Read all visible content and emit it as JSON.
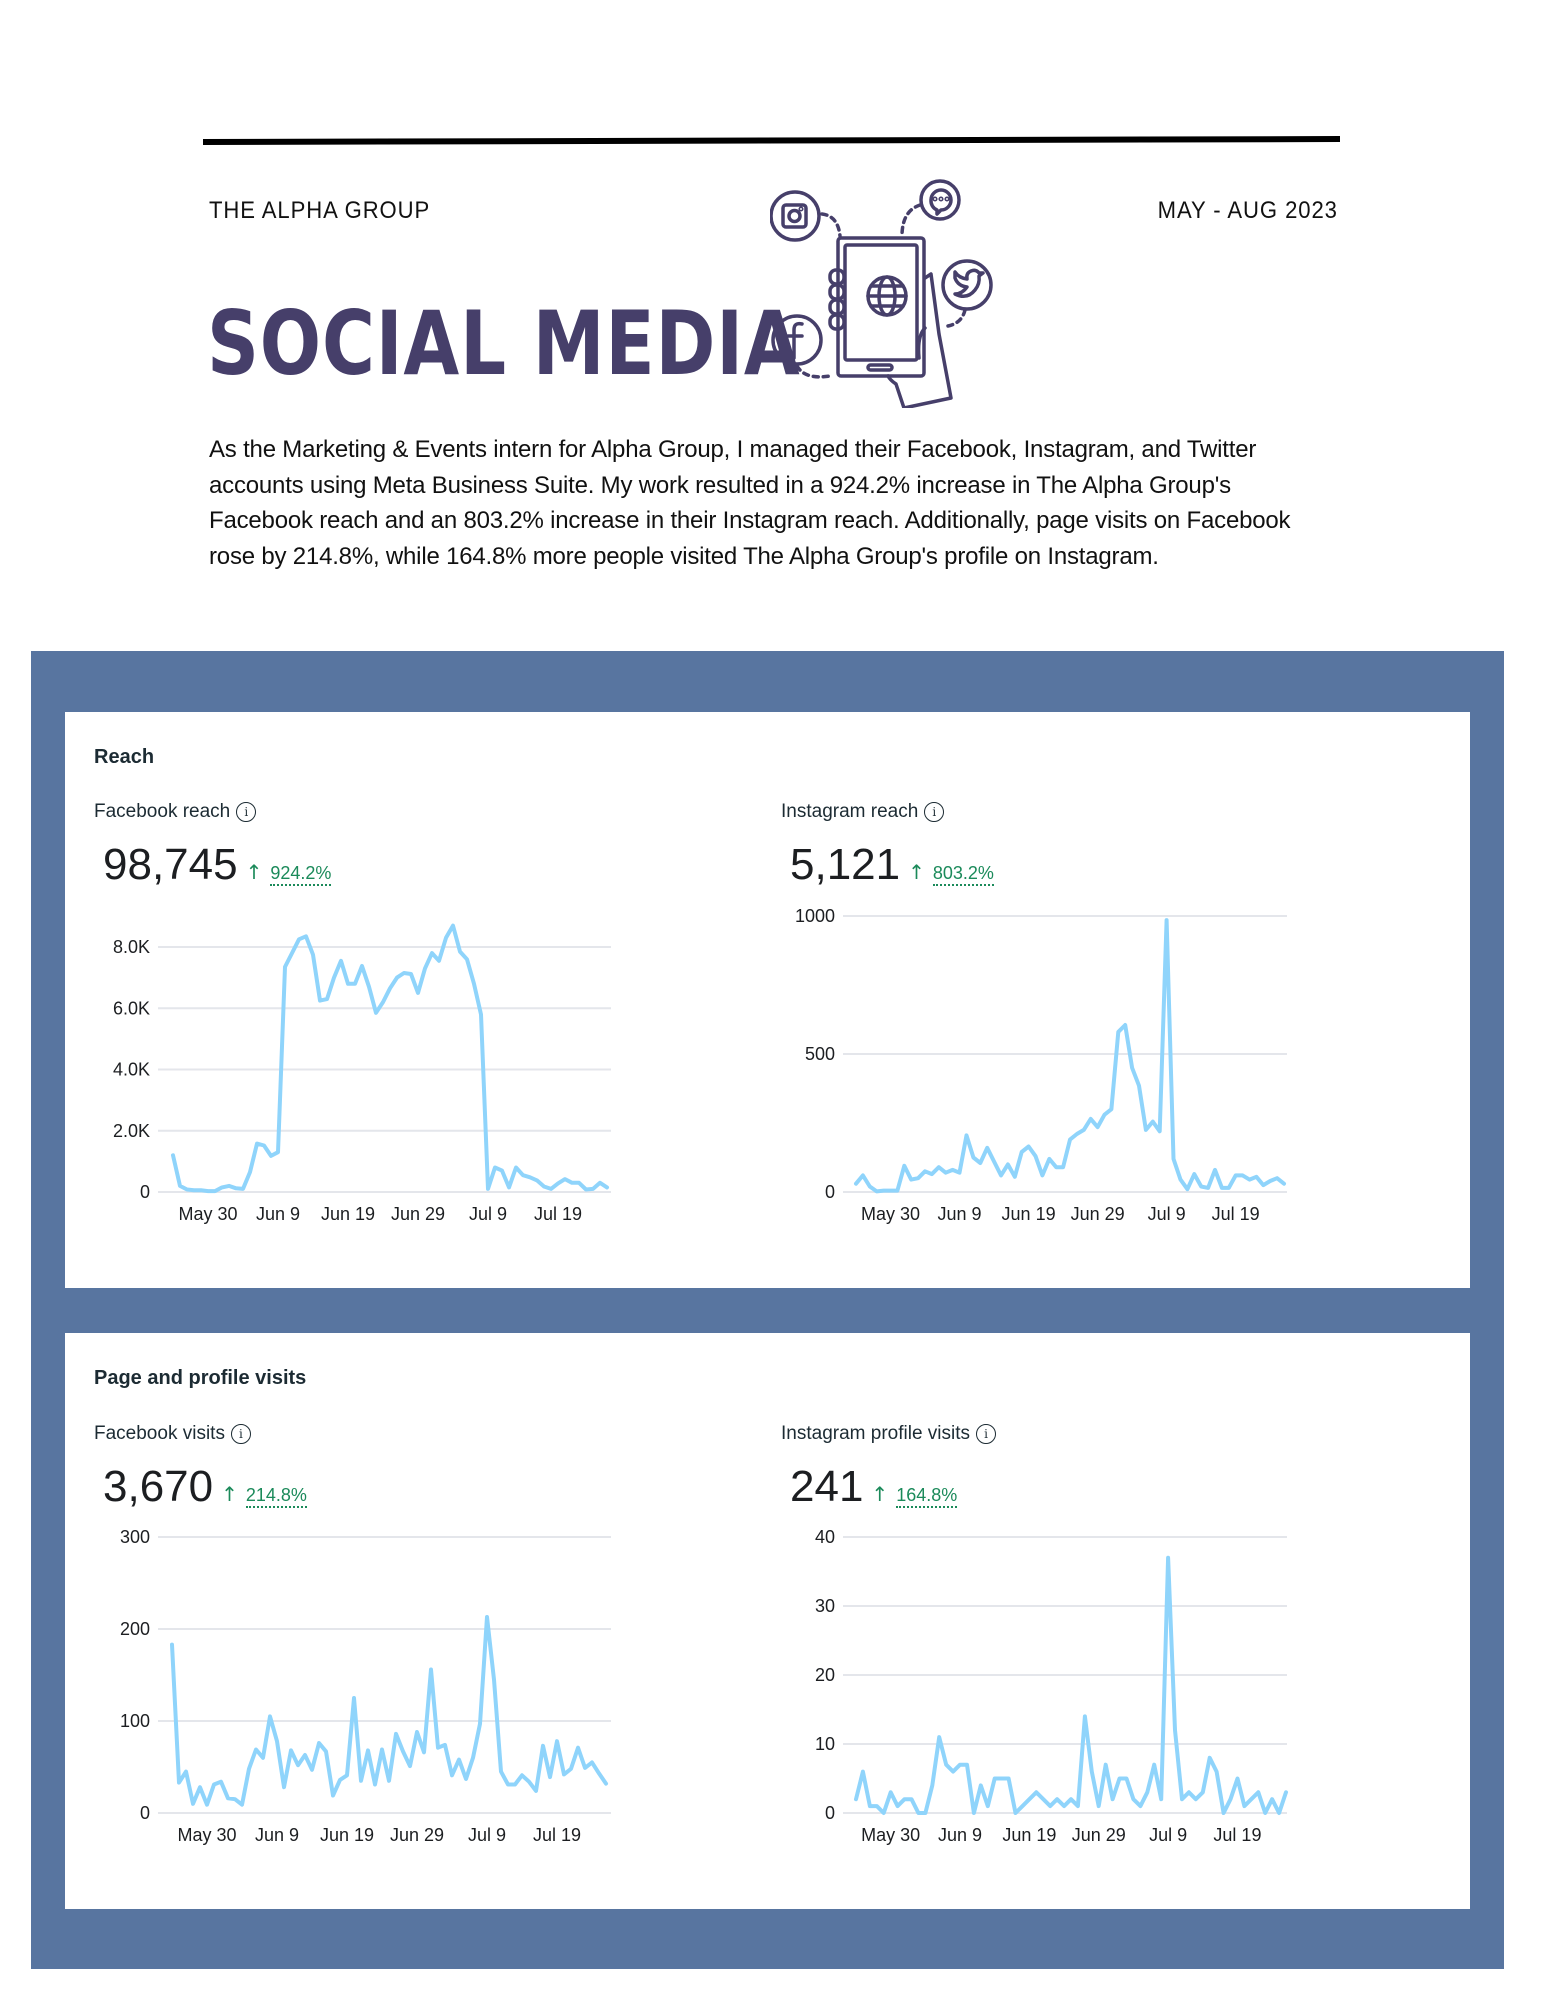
{
  "header": {
    "org_name": "THE ALPHA GROUP",
    "date_range": "MAY - AUG 2023",
    "title": "SOCIAL MEDIA",
    "illustration_icons": [
      "instagram-icon",
      "chat-bubble-icon",
      "twitter-icon",
      "facebook-icon",
      "smartphone-icon",
      "globe-icon",
      "hand-icon"
    ],
    "intro": "As the Marketing & Events intern for Alpha Group, I managed their Facebook, Instagram, and Twitter accounts using Meta Business Suite. My work resulted in a 924.2% increase in The Alpha Group's Facebook reach and an 803.2% increase in their Instagram reach. Additionally, page visits on Facebook rose by 214.8%, while 164.8% more people visited The Alpha Group's profile on Instagram."
  },
  "colors": {
    "title": "#463f6a",
    "panel_background": "#5875a0",
    "line": "#8fd4fb",
    "positive_change": "#1b8a5a"
  },
  "cards": {
    "reach": {
      "title": "Reach",
      "facebook": {
        "label": "Facebook reach",
        "value": "98,745",
        "arrow": "↑",
        "change": "924.2%"
      },
      "instagram": {
        "label": "Instagram reach",
        "value": "5,121",
        "arrow": "↑",
        "change": "803.2%"
      }
    },
    "visits": {
      "title": "Page and profile visits",
      "facebook": {
        "label": "Facebook visits",
        "value": "3,670",
        "arrow": "↑",
        "change": "214.8%"
      },
      "instagram": {
        "label": "Instagram profile visits",
        "value": "241",
        "arrow": "↑",
        "change": "164.8%"
      }
    }
  },
  "chart_data": [
    {
      "id": "facebook-reach",
      "type": "line",
      "title": "Facebook reach",
      "x_start": "May 25",
      "x_end": "Jul 26",
      "x_tick_labels": [
        "May 30",
        "Jun 9",
        "Jun 19",
        "Jun 29",
        "Jul 9",
        "Jul 19"
      ],
      "x_tick_index": [
        5,
        15,
        25,
        35,
        45,
        55
      ],
      "y_ticks": [
        0,
        2000,
        4000,
        6000,
        8000
      ],
      "y_tick_labels": [
        "0",
        "2.0K",
        "4.0K",
        "6.0K",
        "8.0K"
      ],
      "ylim": [
        0,
        9300
      ],
      "grid": true,
      "values": [
        1200,
        200,
        80,
        60,
        60,
        30,
        30,
        150,
        200,
        120,
        100,
        650,
        1580,
        1520,
        1180,
        1300,
        7350,
        7800,
        8250,
        8350,
        7750,
        6250,
        6300,
        7000,
        7550,
        6800,
        6800,
        7380,
        6700,
        5850,
        6200,
        6650,
        7000,
        7150,
        7120,
        6500,
        7300,
        7800,
        7550,
        8300,
        8700,
        7850,
        7600,
        6800,
        5800,
        100,
        800,
        700,
        150,
        800,
        550,
        480,
        380,
        180,
        100,
        280,
        420,
        300,
        300,
        80,
        100,
        300,
        150
      ]
    },
    {
      "id": "instagram-reach",
      "type": "line",
      "title": "Instagram reach",
      "x_start": "May 25",
      "x_end": "Jul 26",
      "x_tick_labels": [
        "May 30",
        "Jun 9",
        "Jun 19",
        "Jun 29",
        "Jul 9",
        "Jul 19"
      ],
      "x_tick_index": [
        5,
        15,
        25,
        35,
        45,
        55
      ],
      "y_ticks": [
        0,
        500,
        1000
      ],
      "y_tick_labels": [
        "0",
        "500",
        "1000"
      ],
      "ylim": [
        0,
        1000
      ],
      "grid": true,
      "values": [
        30,
        60,
        20,
        2,
        5,
        5,
        5,
        95,
        45,
        50,
        75,
        65,
        90,
        70,
        80,
        70,
        205,
        125,
        105,
        160,
        110,
        60,
        100,
        55,
        145,
        165,
        130,
        60,
        120,
        90,
        90,
        190,
        210,
        225,
        265,
        235,
        280,
        300,
        580,
        605,
        450,
        385,
        225,
        255,
        220,
        985,
        120,
        45,
        10,
        65,
        20,
        15,
        80,
        15,
        15,
        60,
        60,
        45,
        55,
        25,
        40,
        50,
        30
      ]
    },
    {
      "id": "facebook-visits",
      "type": "line",
      "title": "Facebook visits",
      "x_start": "May 25",
      "x_end": "Jul 26",
      "x_tick_labels": [
        "May 30",
        "Jun 9",
        "Jun 19",
        "Jun 29",
        "Jul 9",
        "Jul 19"
      ],
      "x_tick_index": [
        5,
        15,
        25,
        35,
        45,
        55
      ],
      "y_ticks": [
        0,
        100,
        200,
        300
      ],
      "y_tick_labels": [
        "0",
        "100",
        "200",
        "300"
      ],
      "ylim": [
        0,
        300
      ],
      "grid": true,
      "values": [
        183,
        33,
        45,
        10,
        28,
        9,
        31,
        34,
        16,
        15,
        9,
        48,
        69,
        60,
        105,
        78,
        28,
        68,
        52,
        63,
        47,
        76,
        67,
        19,
        36,
        41,
        125,
        35,
        68,
        31,
        69,
        35,
        86,
        67,
        51,
        88,
        66,
        156,
        71,
        74,
        41,
        58,
        37,
        60,
        97,
        213,
        145,
        45,
        31,
        31,
        41,
        34,
        24,
        73,
        39,
        78,
        42,
        48,
        71,
        49,
        55,
        43,
        32
      ]
    },
    {
      "id": "instagram-profile-visits",
      "type": "line",
      "title": "Instagram profile visits",
      "x_start": "May 25",
      "x_end": "Jul 26",
      "x_tick_labels": [
        "May 30",
        "Jun 9",
        "Jun 19",
        "Jun 29",
        "Jul 9",
        "Jul 19"
      ],
      "x_tick_index": [
        5,
        15,
        25,
        35,
        45,
        55
      ],
      "y_ticks": [
        0,
        10,
        20,
        30,
        40
      ],
      "y_tick_labels": [
        "0",
        "10",
        "20",
        "30",
        "40"
      ],
      "ylim": [
        0,
        40
      ],
      "grid": true,
      "values": [
        2,
        6,
        1,
        1,
        0,
        3,
        1,
        2,
        2,
        0,
        0,
        4,
        11,
        7,
        6,
        7,
        7,
        0,
        4,
        1,
        5,
        5,
        5,
        0,
        1,
        2,
        3,
        2,
        1,
        2,
        1,
        2,
        1,
        14,
        6,
        1,
        7,
        2,
        5,
        5,
        2,
        1,
        3,
        7,
        2,
        37,
        12,
        2,
        3,
        2,
        3,
        8,
        6,
        0,
        2,
        5,
        1,
        2,
        3,
        0,
        2,
        0,
        3
      ]
    }
  ]
}
